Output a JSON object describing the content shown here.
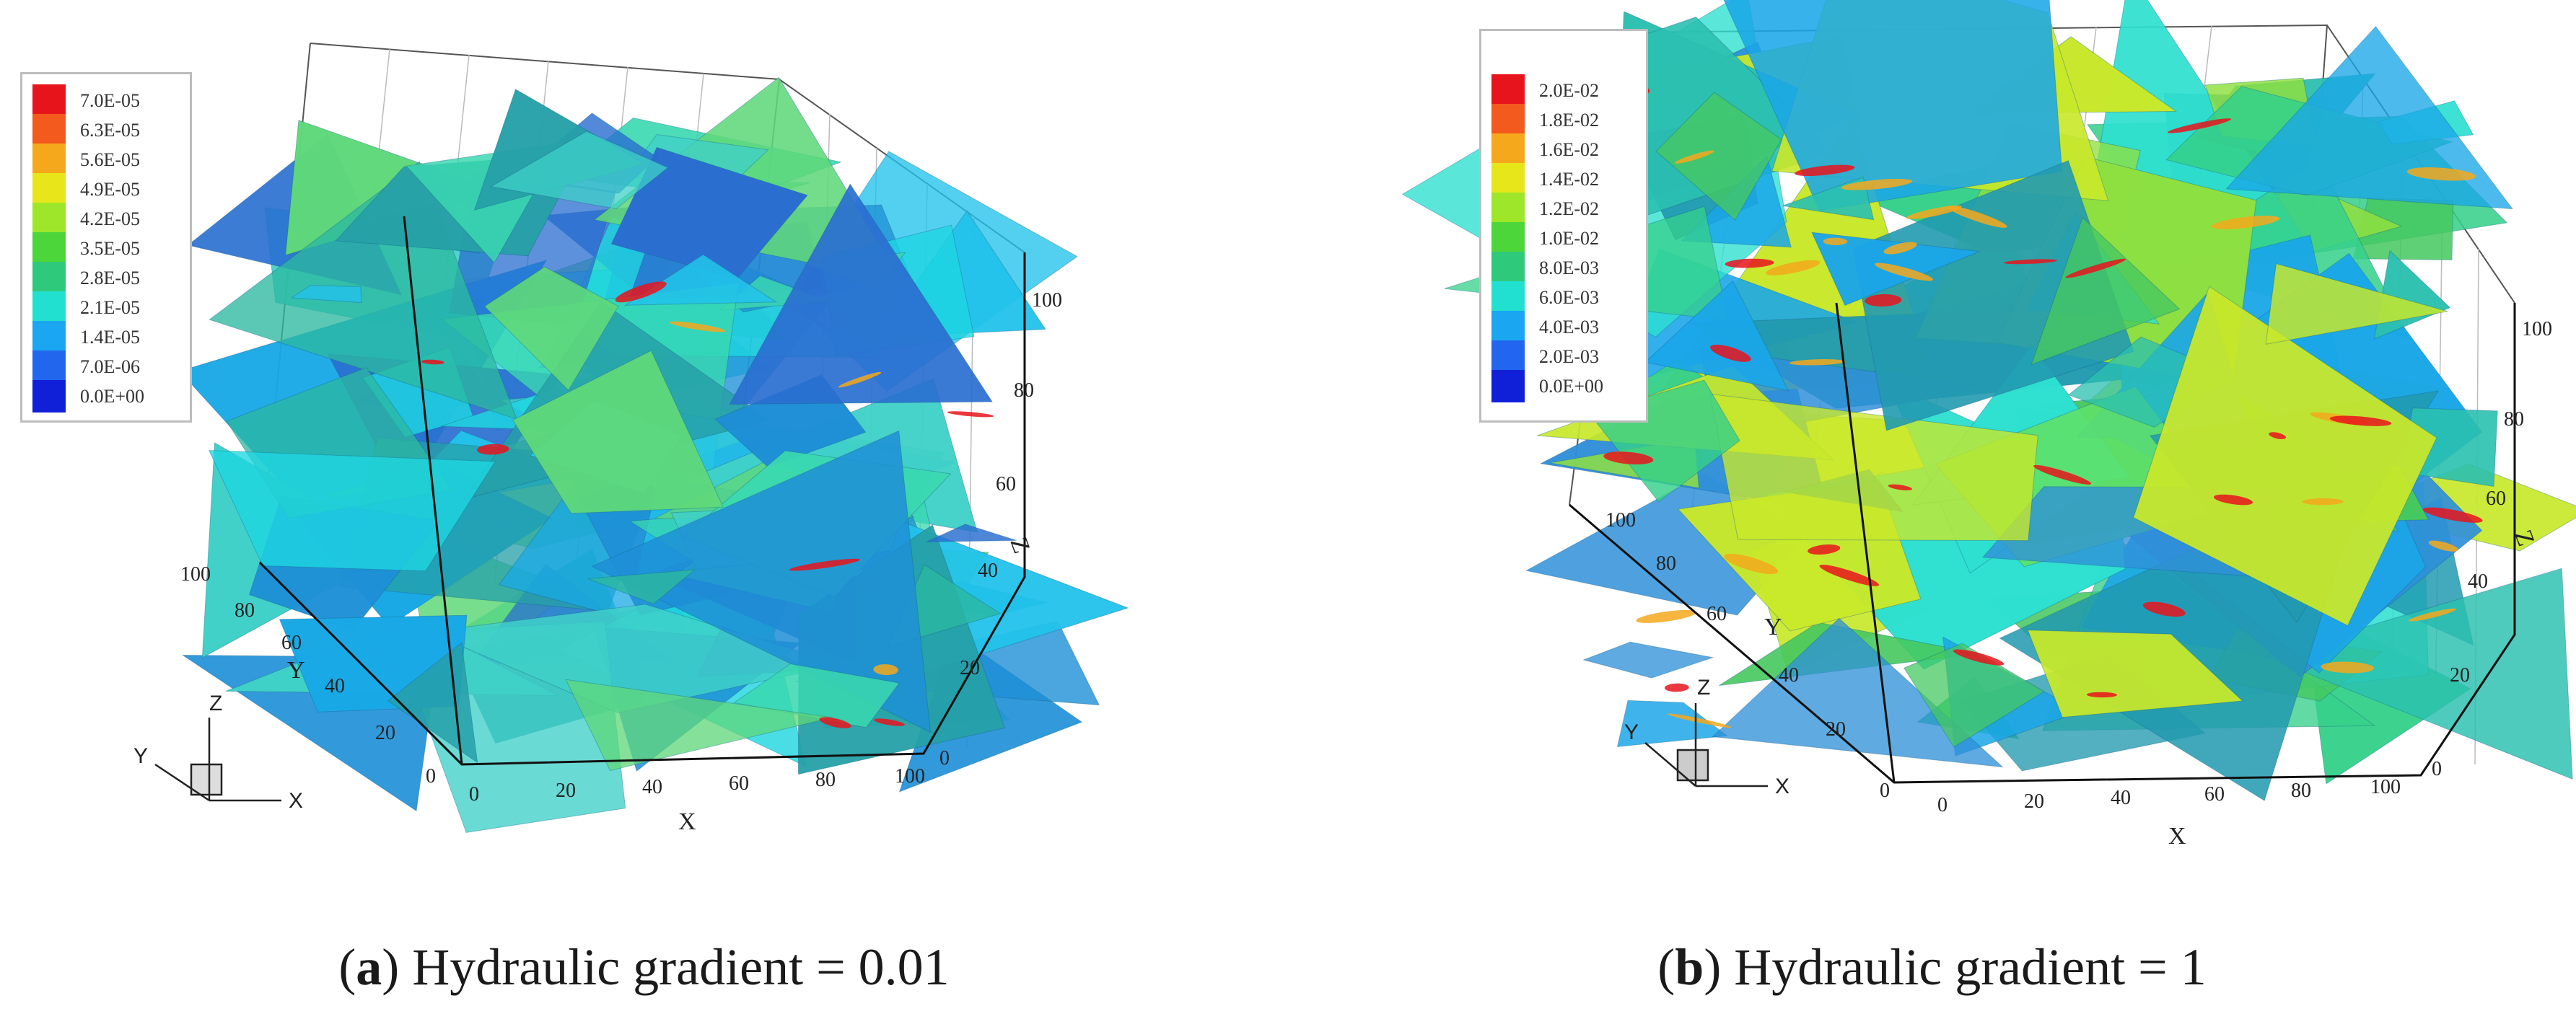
{
  "panel_a": {
    "caption_letter": "a",
    "caption_text": "Hydraulic gradient = 0.01",
    "legend": [
      "7.0E-05",
      "6.3E-05",
      "5.6E-05",
      "4.9E-05",
      "4.2E-05",
      "3.5E-05",
      "2.8E-05",
      "2.1E-05",
      "1.4E-05",
      "7.0E-06",
      "0.0E+00"
    ],
    "x_ticks": [
      "0",
      "20",
      "40",
      "60",
      "80",
      "100"
    ],
    "y_ticks": [
      "0",
      "20",
      "40",
      "60",
      "80",
      "100"
    ],
    "z_ticks": [
      "0",
      "20",
      "40",
      "60",
      "80",
      "100"
    ],
    "axis_x": "X",
    "axis_y": "Y",
    "axis_z": "Z"
  },
  "panel_b": {
    "caption_letter": "b",
    "caption_text": "Hydraulic gradient = 1",
    "legend": [
      "2.0E-02",
      "1.8E-02",
      "1.6E-02",
      "1.4E-02",
      "1.2E-02",
      "1.0E-02",
      "8.0E-03",
      "6.0E-03",
      "4.0E-03",
      "2.0E-03",
      "0.0E+00"
    ],
    "x_ticks": [
      "0",
      "20",
      "40",
      "60",
      "80",
      "100"
    ],
    "y_ticks": [
      "0",
      "20",
      "40",
      "60",
      "80",
      "100"
    ],
    "z_ticks": [
      "0",
      "20",
      "40",
      "60",
      "80",
      "100"
    ],
    "axis_x": "X",
    "axis_y": "Y",
    "axis_z": "Z"
  },
  "legend_colors": [
    "#e8141c",
    "#f25a1e",
    "#f5a81c",
    "#e6e61a",
    "#9ee62a",
    "#4cd63a",
    "#2ec97a",
    "#22e0d0",
    "#1aa6f0",
    "#2266ee",
    "#1020d8"
  ],
  "fracture_palette_a": [
    "#1fd6e0",
    "#22c2ea",
    "#18a8e6",
    "#3ad8b0",
    "#2bb8a0",
    "#5fd87a",
    "#1e8fd6",
    "#2a6fd0",
    "#3fd0c8",
    "#26a0a8"
  ],
  "fracture_palette_b": [
    "#5fe06a",
    "#36d08a",
    "#2bc0b0",
    "#2ee0d0",
    "#1aa6e8",
    "#8fe040",
    "#c8e82a",
    "#2f90d8",
    "#46c860",
    "#229ab0"
  ]
}
